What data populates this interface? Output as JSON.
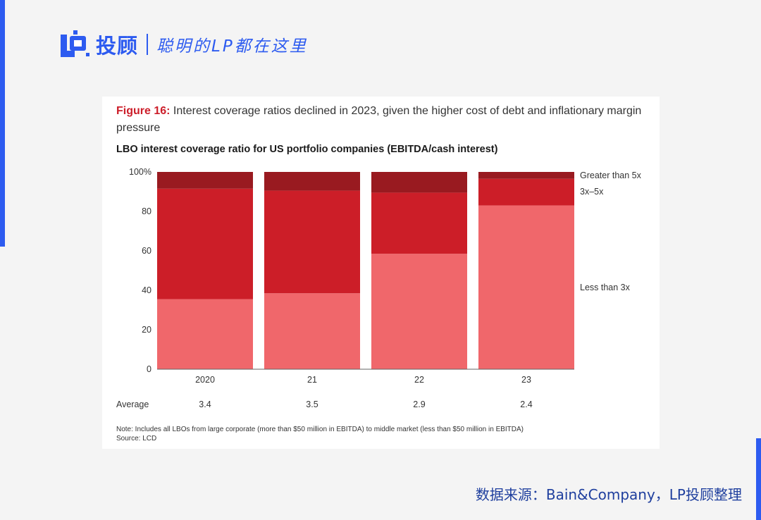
{
  "brand": {
    "name": "投顾",
    "slogan": "聪明的LP都在这里"
  },
  "figure": {
    "label": "Figure 16:",
    "caption": "Interest coverage ratios declined in 2023, given the higher cost of debt and inflationary margin pressure"
  },
  "chart_data": {
    "type": "bar",
    "stacked": true,
    "title": "LBO interest coverage ratio for US portfolio companies (EBITDA/cash interest)",
    "categories": [
      "2020",
      "21",
      "22",
      "23"
    ],
    "series": [
      {
        "name": "Less than 3x",
        "color": "#f0676b",
        "values": [
          35.5,
          38.5,
          58.5,
          83
        ]
      },
      {
        "name": "3x–5x",
        "color": "#cc1e28",
        "values": [
          56,
          52,
          31,
          13.5
        ]
      },
      {
        "name": "Greater than 5x",
        "color": "#991a20",
        "values": [
          8.5,
          9.5,
          10.5,
          3.5
        ]
      }
    ],
    "yticks": [
      "0",
      "20",
      "40",
      "60",
      "80",
      "100%"
    ],
    "ylim": [
      0,
      100
    ],
    "average": {
      "label": "Average",
      "values": [
        "3.4",
        "3.5",
        "2.9",
        "2.4"
      ]
    },
    "legend_position": "right"
  },
  "note": {
    "text": "Note: Includes all LBOs from large corporate (more than $50 million in EBITDA) to middle market (less than $50 million in EBITDA)",
    "source": "Source: LCD"
  },
  "footer": {
    "source": "数据来源：Bain&Company，LP投顾整理"
  }
}
